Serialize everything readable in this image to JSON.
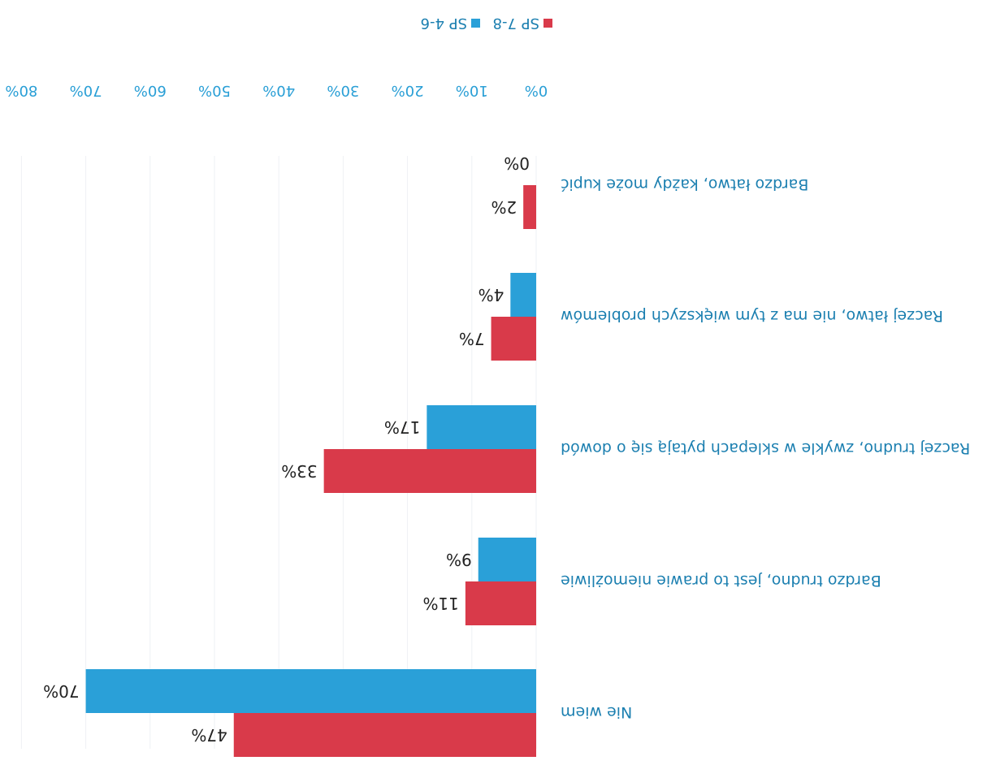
{
  "chart_data": {
    "type": "bar",
    "orientation": "horizontal",
    "rotation": "180deg (image shown upside down)",
    "categories": [
      "Nie wiem",
      "Bardzo trudno, jest to prawie niemożliwie",
      "Raczej trudno, zwykle w sklepach pytają się o dowód",
      "Raczej łatwo, nie ma z tym większych problemów",
      "Bardzo łatwo, każdy może kupić"
    ],
    "series": [
      {
        "name": "SP 7-8",
        "color": "#d93a4a",
        "values": [
          47,
          11,
          33,
          7,
          2
        ]
      },
      {
        "name": "SP 4-6",
        "color": "#2aa0d8",
        "values": [
          70,
          9,
          17,
          4,
          0
        ]
      }
    ],
    "value_labels": {
      "sp78": [
        "47%",
        "11%",
        "33%",
        "7%",
        "2%"
      ],
      "sp46": [
        "70%",
        "9%",
        "17%",
        "4%",
        "0%"
      ]
    },
    "axis_ticks": [
      "0%",
      "10%",
      "20%",
      "30%",
      "40%",
      "50%",
      "60%",
      "70%",
      "80%"
    ],
    "xlim": [
      0,
      80
    ],
    "legend_position": "bottom",
    "grid": true
  }
}
